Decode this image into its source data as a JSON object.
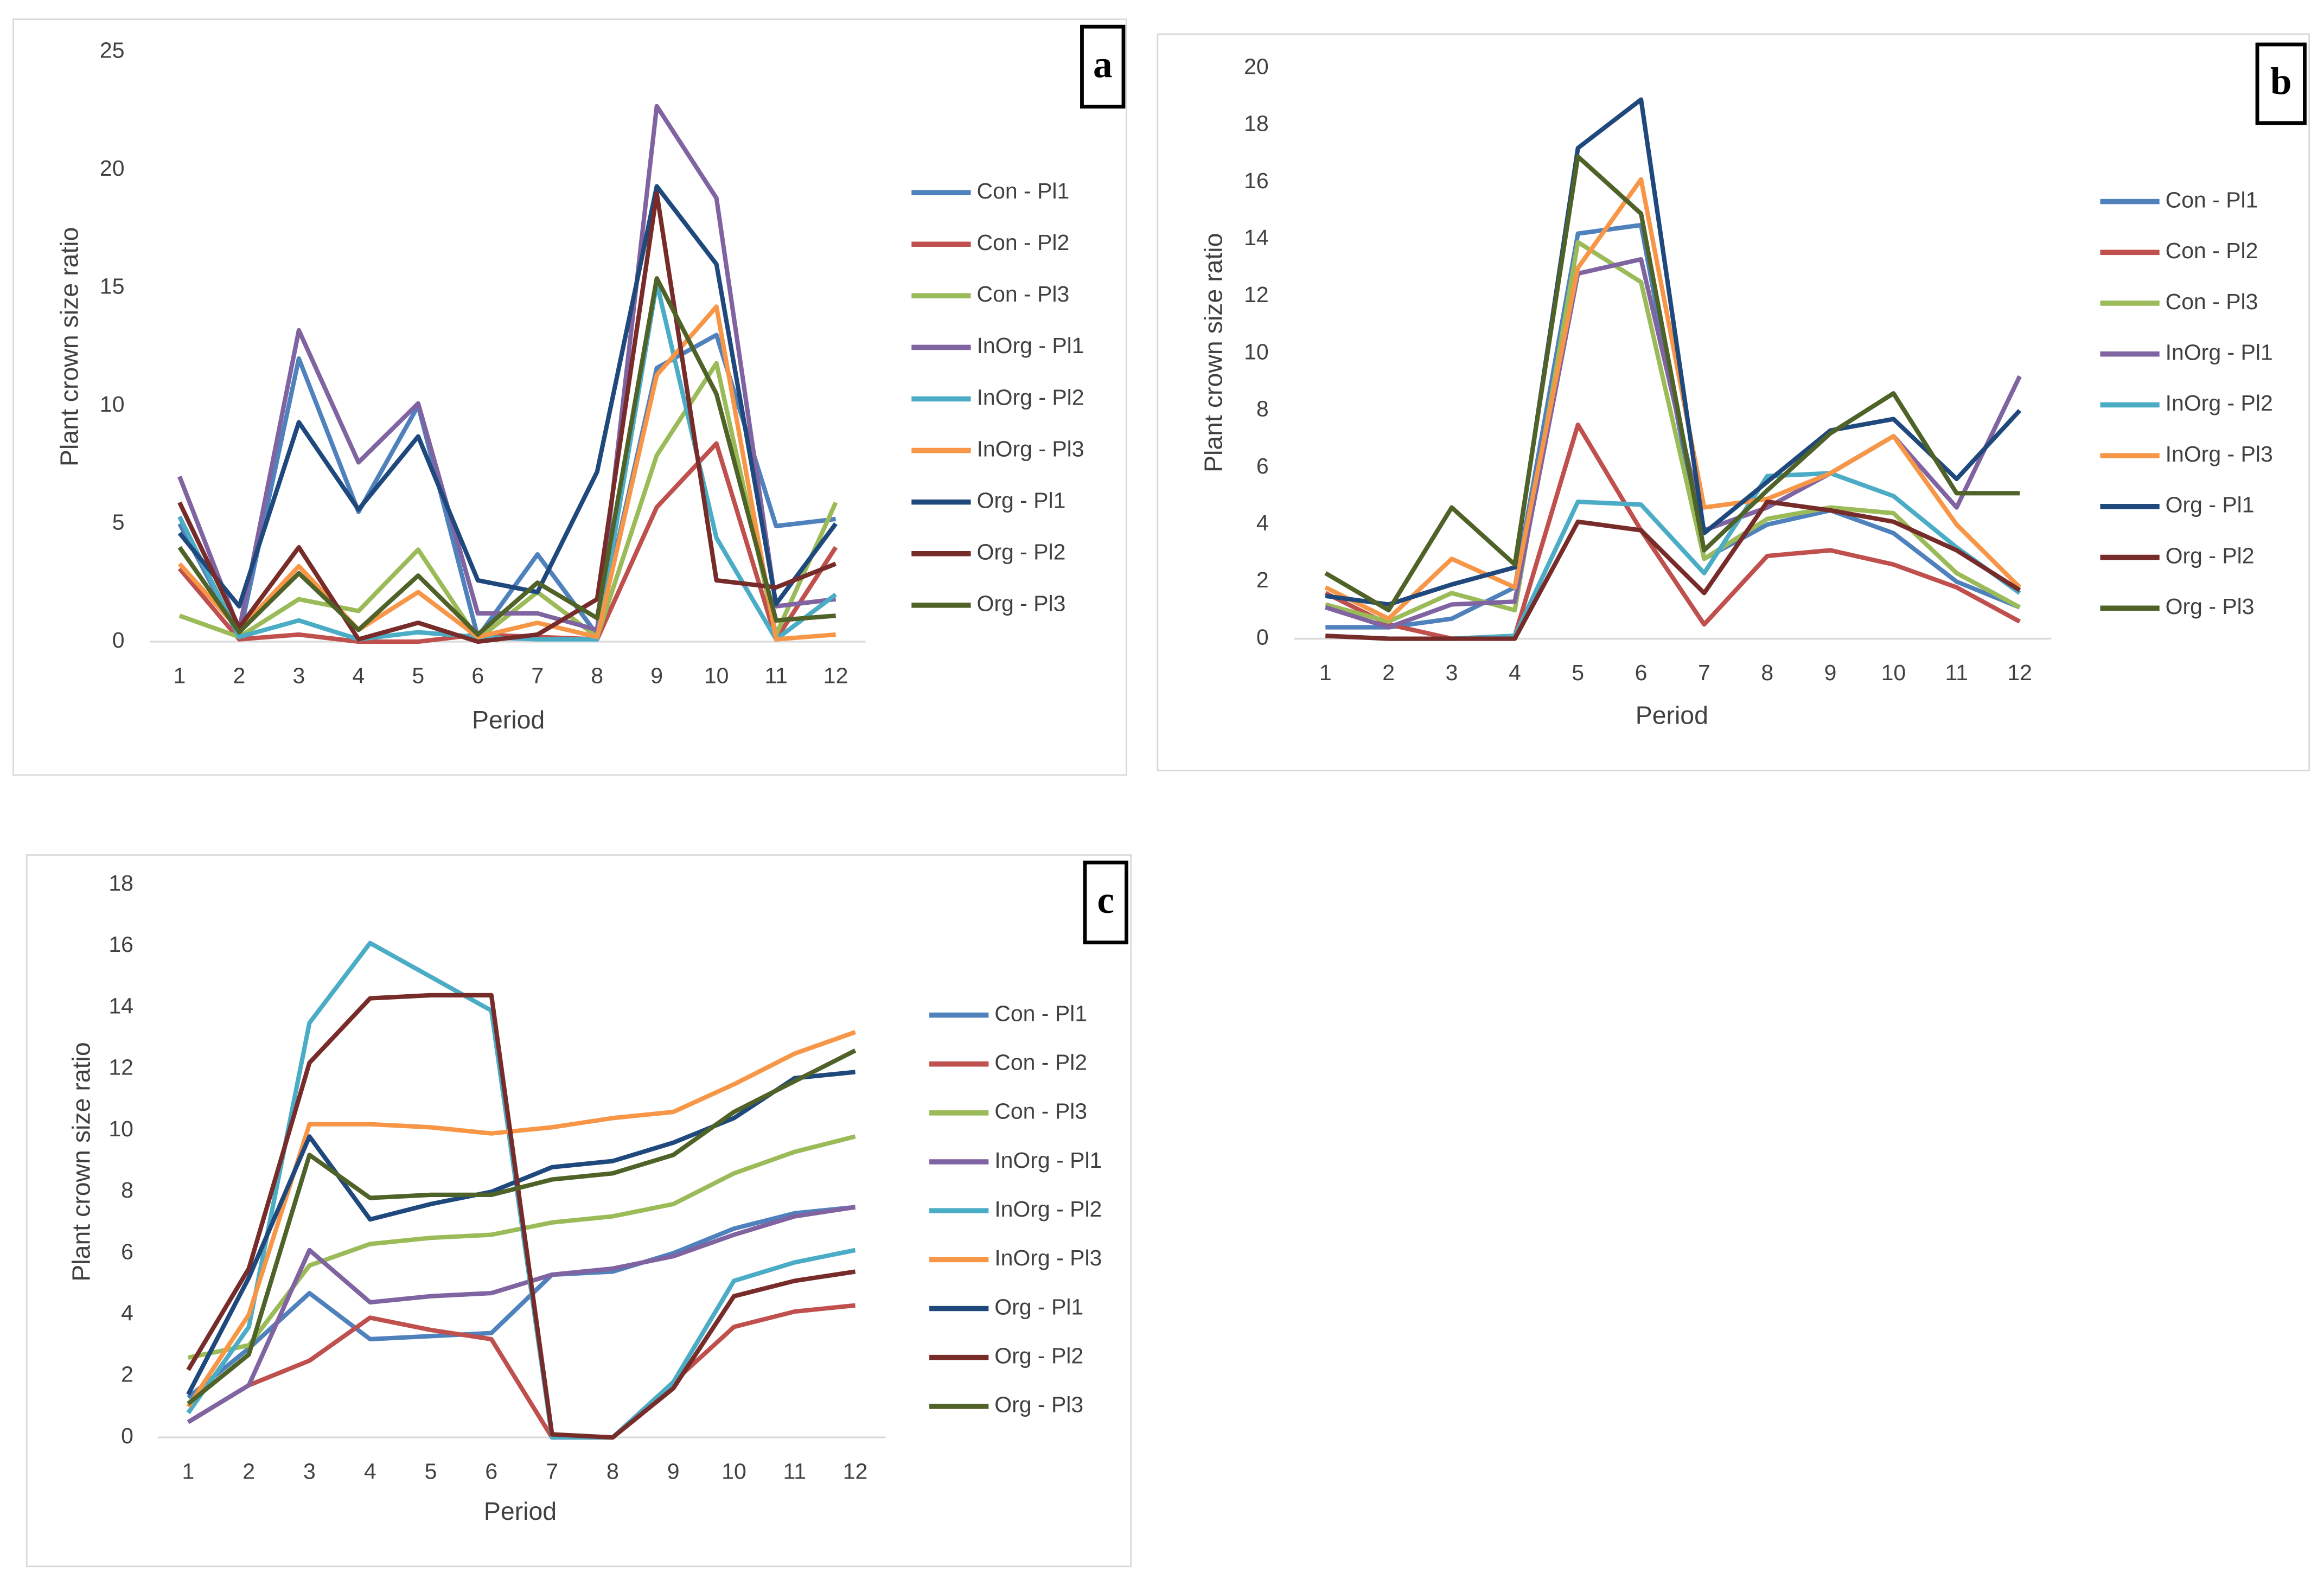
{
  "chart_data": [
    {
      "type": "line",
      "panel_label": "a",
      "y_label": "Plant crown size ratio",
      "x_label": "Period",
      "categories": [
        "1",
        "2",
        "3",
        "4",
        "5",
        "6",
        "7",
        "8",
        "9",
        "10",
        "11",
        "12"
      ],
      "ylim": [
        0,
        25
      ],
      "yticks": [
        0,
        5,
        10,
        15,
        20,
        25
      ],
      "series": [
        {
          "name": "Con - Pl1",
          "color": "#4f81bd",
          "values": [
            5,
            0.2,
            12,
            5.5,
            10,
            0.2,
            3.7,
            0.3,
            11.6,
            13,
            4.9,
            5.2
          ]
        },
        {
          "name": "Con - Pl2",
          "color": "#c0504d",
          "values": [
            3.1,
            0.1,
            0.3,
            0,
            0,
            0.3,
            0.2,
            0.1,
            5.7,
            8.4,
            0.1,
            4
          ]
        },
        {
          "name": "Con - Pl3",
          "color": "#9bbb59",
          "values": [
            1.1,
            0.2,
            1.8,
            1.3,
            3.9,
            0.1,
            2.1,
            0.2,
            7.9,
            11.8,
            0.3,
            5.9
          ]
        },
        {
          "name": "InOrg - Pl1",
          "color": "#8064a2",
          "values": [
            7,
            0.5,
            13.2,
            7.6,
            10.1,
            1.2,
            1.2,
            0.5,
            22.7,
            18.8,
            1.5,
            1.8
          ]
        },
        {
          "name": "InOrg - Pl2",
          "color": "#4bacc6",
          "values": [
            5.3,
            0.2,
            0.9,
            0.1,
            0.4,
            0.2,
            0.1,
            0.1,
            15.2,
            4.4,
            0.1,
            2
          ]
        },
        {
          "name": "InOrg - Pl3",
          "color": "#f79646",
          "values": [
            3.3,
            0.5,
            3.2,
            0.5,
            2.1,
            0.2,
            0.8,
            0.2,
            11.3,
            14.2,
            0.1,
            0.3
          ]
        },
        {
          "name": "Org - Pl1",
          "color": "#1f497d",
          "values": [
            4.6,
            1.5,
            9.3,
            5.6,
            8.7,
            2.6,
            2.1,
            7.2,
            19.3,
            16,
            1.6,
            5
          ]
        },
        {
          "name": "Org - Pl2",
          "color": "#772c2a",
          "values": [
            5.9,
            0.6,
            4,
            0.1,
            0.8,
            0,
            0.3,
            1.8,
            19,
            2.6,
            2.3,
            3.3
          ]
        },
        {
          "name": "Org - Pl3",
          "color": "#4f6228",
          "values": [
            4,
            0.4,
            2.9,
            0.5,
            2.8,
            0.3,
            2.5,
            1,
            15.4,
            10.5,
            0.9,
            1.1
          ]
        }
      ]
    },
    {
      "type": "line",
      "panel_label": "b",
      "y_label": "Plant crown size ratio",
      "x_label": "Period",
      "categories": [
        "1",
        "2",
        "3",
        "4",
        "5",
        "6",
        "7",
        "8",
        "9",
        "10",
        "11",
        "12"
      ],
      "ylim": [
        0,
        20
      ],
      "yticks": [
        0,
        2,
        4,
        6,
        8,
        10,
        12,
        14,
        16,
        18,
        20
      ],
      "series": [
        {
          "name": "Con - Pl1",
          "color": "#4f81bd",
          "values": [
            0.4,
            0.4,
            0.7,
            1.8,
            14.2,
            14.5,
            2.8,
            4,
            4.5,
            3.7,
            2,
            1.1
          ]
        },
        {
          "name": "Con - Pl2",
          "color": "#c0504d",
          "values": [
            1.6,
            0.5,
            0,
            0.1,
            7.5,
            3.8,
            0.5,
            2.9,
            3.1,
            2.6,
            1.8,
            0.6
          ]
        },
        {
          "name": "Con - Pl3",
          "color": "#9bbb59",
          "values": [
            1.2,
            0.6,
            1.6,
            1,
            13.9,
            12.5,
            2.8,
            4.2,
            4.6,
            4.4,
            2.3,
            1.1
          ]
        },
        {
          "name": "InOrg - Pl1",
          "color": "#8064a2",
          "values": [
            1.1,
            0.4,
            1.2,
            1.3,
            12.8,
            13.3,
            3.8,
            4.6,
            5.8,
            7.1,
            4.6,
            9.2
          ]
        },
        {
          "name": "InOrg - Pl2",
          "color": "#4bacc6",
          "values": [
            0.1,
            0,
            0,
            0.1,
            4.8,
            4.7,
            2.3,
            5.7,
            5.8,
            5,
            3.2,
            1.6
          ]
        },
        {
          "name": "InOrg - Pl3",
          "color": "#f79646",
          "values": [
            1.8,
            0.7,
            2.8,
            1.8,
            13,
            16.1,
            4.6,
            4.9,
            5.8,
            7.1,
            4,
            1.8
          ]
        },
        {
          "name": "Org - Pl1",
          "color": "#1f497d",
          "values": [
            1.5,
            1.2,
            1.9,
            2.5,
            17.2,
            18.9,
            3.7,
            5.5,
            7.3,
            7.7,
            5.6,
            8
          ]
        },
        {
          "name": "Org - Pl2",
          "color": "#772c2a",
          "values": [
            0.1,
            0,
            0,
            0,
            4.1,
            3.8,
            1.6,
            4.8,
            4.5,
            4.1,
            3.1,
            1.7
          ]
        },
        {
          "name": "Org - Pl3",
          "color": "#4f6228",
          "values": [
            2.3,
            1,
            4.6,
            2.6,
            16.9,
            14.9,
            3.1,
            5.2,
            7.2,
            8.6,
            5.1,
            5.1
          ]
        }
      ]
    },
    {
      "type": "line",
      "panel_label": "c",
      "y_label": "Plant crown size ratio",
      "x_label": "Period",
      "categories": [
        "1",
        "2",
        "3",
        "4",
        "5",
        "6",
        "7",
        "8",
        "9",
        "10",
        "11",
        "12"
      ],
      "ylim": [
        0,
        18
      ],
      "yticks": [
        0,
        2,
        4,
        6,
        8,
        10,
        12,
        14,
        16,
        18
      ],
      "series": [
        {
          "name": "Con - Pl1",
          "color": "#4f81bd",
          "values": [
            1.3,
            2.9,
            4.7,
            3.2,
            3.3,
            3.4,
            5.3,
            5.4,
            6,
            6.8,
            7.3,
            7.5
          ]
        },
        {
          "name": "Con - Pl2",
          "color": "#c0504d",
          "values": [
            0.5,
            1.7,
            2.5,
            3.9,
            3.5,
            3.2,
            0,
            0,
            1.8,
            3.6,
            4.1,
            4.3
          ]
        },
        {
          "name": "Con - Pl3",
          "color": "#9bbb59",
          "values": [
            2.6,
            3,
            5.6,
            6.3,
            6.5,
            6.6,
            7,
            7.2,
            7.6,
            8.6,
            9.3,
            9.8
          ]
        },
        {
          "name": "InOrg - Pl1",
          "color": "#8064a2",
          "values": [
            0.5,
            1.7,
            6.1,
            4.4,
            4.6,
            4.7,
            5.3,
            5.5,
            5.9,
            6.6,
            7.2,
            7.5
          ]
        },
        {
          "name": "InOrg - Pl2",
          "color": "#4bacc6",
          "values": [
            0.8,
            3.6,
            13.5,
            16.1,
            15,
            13.9,
            0,
            0,
            1.8,
            5.1,
            5.7,
            6.1
          ]
        },
        {
          "name": "InOrg - Pl3",
          "color": "#f79646",
          "values": [
            1,
            4,
            10.2,
            10.2,
            10.1,
            9.9,
            10.1,
            10.4,
            10.6,
            11.5,
            12.5,
            13.2
          ]
        },
        {
          "name": "Org - Pl1",
          "color": "#1f497d",
          "values": [
            1.4,
            5.2,
            9.8,
            7.1,
            7.6,
            8,
            8.8,
            9,
            9.6,
            10.4,
            11.7,
            11.9
          ]
        },
        {
          "name": "Org - Pl2",
          "color": "#772c2a",
          "values": [
            2.2,
            5.5,
            12.2,
            14.3,
            14.4,
            14.4,
            0.1,
            0,
            1.6,
            4.6,
            5.1,
            5.4
          ]
        },
        {
          "name": "Org - Pl3",
          "color": "#4f6228",
          "values": [
            1.1,
            2.7,
            9.2,
            7.8,
            7.9,
            7.9,
            8.4,
            8.6,
            9.2,
            10.6,
            11.6,
            12.6
          ]
        }
      ]
    }
  ]
}
